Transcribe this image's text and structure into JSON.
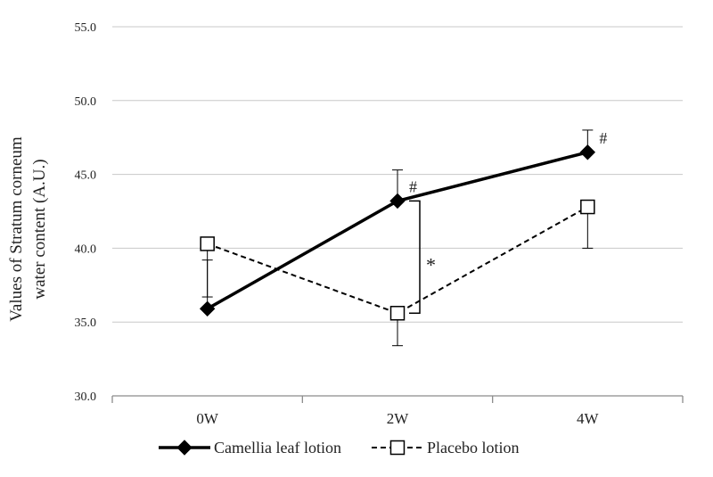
{
  "chart_data": {
    "type": "line",
    "title": "",
    "xlabel": "",
    "ylabel": "Values of Stratum corneum water content (A.U.)",
    "ylabel_lines": [
      "Values of Stratum corneum",
      "water content (A.U.)"
    ],
    "ylim": [
      30,
      55
    ],
    "yticks": [
      30,
      35,
      40,
      45,
      50,
      55
    ],
    "ytick_labels": [
      "30.0",
      "35.0",
      "40.0",
      "45.0",
      "50.0",
      "55.0"
    ],
    "grid": true,
    "legend_position": "bottom",
    "categories": [
      "0W",
      "2W",
      "4W"
    ],
    "series": [
      {
        "name": "Camellia leaf lotion",
        "values": [
          35.9,
          43.2,
          46.5
        ],
        "error_upper": [
          39.2,
          45.3,
          48.0
        ],
        "error_lower": [
          null,
          null,
          null
        ],
        "line_style": "solid",
        "marker": "filled-diamond",
        "color": "#000000"
      },
      {
        "name": "Placebo lotion",
        "values": [
          40.3,
          35.6,
          42.8
        ],
        "error_upper": [
          null,
          null,
          null
        ],
        "error_lower": [
          36.7,
          33.4,
          40.0
        ],
        "line_style": "dashed",
        "marker": "open-square",
        "color": "#000000"
      }
    ],
    "annotations": {
      "within_group_marks": [
        {
          "series": "Camellia leaf lotion",
          "category": "2W",
          "text": "#"
        },
        {
          "series": "Camellia leaf lotion",
          "category": "4W",
          "text": "#"
        }
      ],
      "between_group": {
        "category": "2W",
        "from": 43.2,
        "to": 35.6,
        "text": "*"
      }
    }
  }
}
